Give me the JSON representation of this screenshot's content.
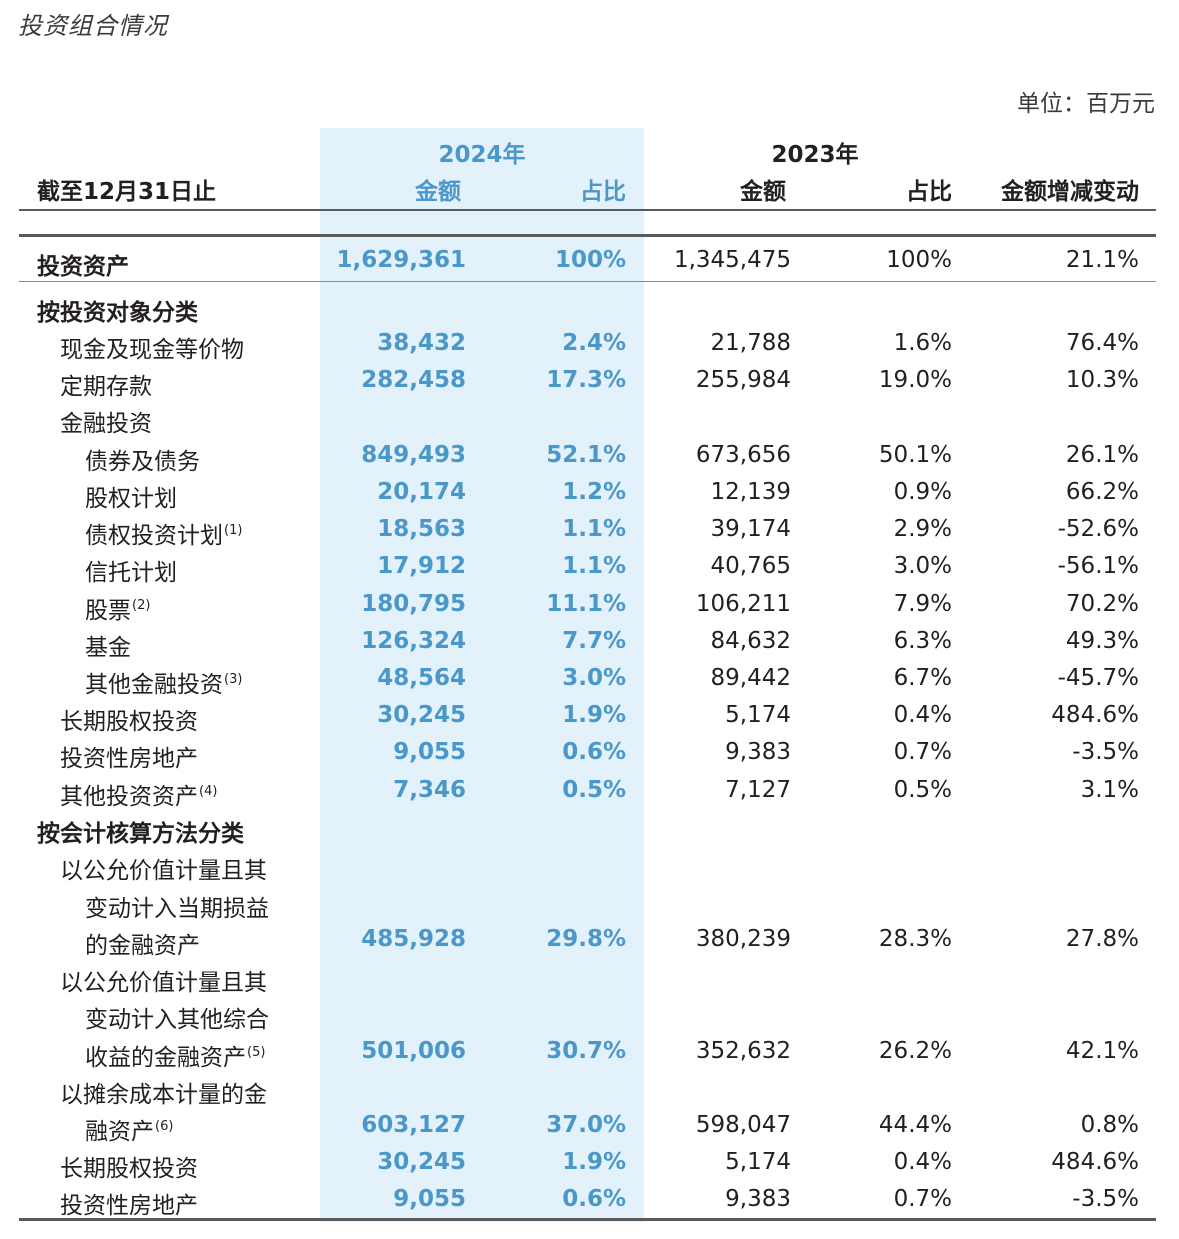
{
  "title": "投资组合情况",
  "unit": "单位：百万元",
  "header": {
    "col_label": "截至12月31日止",
    "year_2024": "2024年",
    "year_2023": "2023年",
    "amount": "金额",
    "share": "占比",
    "change": "金额增减变动"
  },
  "rows": [
    {
      "label": "投资资产",
      "note": "",
      "v24": "1,629,361",
      "p24": "100%",
      "v23": "1,345,475",
      "p23": "100%",
      "chg": "21.1%"
    },
    {
      "label": "按投资对象分类",
      "note": "",
      "v24": "",
      "p24": "",
      "v23": "",
      "p23": "",
      "chg": ""
    },
    {
      "label": "现金及现金等价物",
      "note": "",
      "v24": "38,432",
      "p24": "2.4%",
      "v23": "21,788",
      "p23": "1.6%",
      "chg": "76.4%"
    },
    {
      "label": "定期存款",
      "note": "",
      "v24": "282,458",
      "p24": "17.3%",
      "v23": "255,984",
      "p23": "19.0%",
      "chg": "10.3%"
    },
    {
      "label": "金融投资",
      "note": "",
      "v24": "",
      "p24": "",
      "v23": "",
      "p23": "",
      "chg": ""
    },
    {
      "label": "债券及债务",
      "note": "",
      "v24": "849,493",
      "p24": "52.1%",
      "v23": "673,656",
      "p23": "50.1%",
      "chg": "26.1%"
    },
    {
      "label": "股权计划",
      "note": "",
      "v24": "20,174",
      "p24": "1.2%",
      "v23": "12,139",
      "p23": "0.9%",
      "chg": "66.2%"
    },
    {
      "label": "债权投资计划",
      "note": "(1)",
      "v24": "18,563",
      "p24": "1.1%",
      "v23": "39,174",
      "p23": "2.9%",
      "chg": "-52.6%"
    },
    {
      "label": "信托计划",
      "note": "",
      "v24": "17,912",
      "p24": "1.1%",
      "v23": "40,765",
      "p23": "3.0%",
      "chg": "-56.1%"
    },
    {
      "label": "股票",
      "note": "(2)",
      "v24": "180,795",
      "p24": "11.1%",
      "v23": "106,211",
      "p23": "7.9%",
      "chg": "70.2%"
    },
    {
      "label": "基金",
      "note": "",
      "v24": "126,324",
      "p24": "7.7%",
      "v23": "84,632",
      "p23": "6.3%",
      "chg": "49.3%"
    },
    {
      "label": "其他金融投资",
      "note": "(3)",
      "v24": "48,564",
      "p24": "3.0%",
      "v23": "89,442",
      "p23": "6.7%",
      "chg": "-45.7%"
    },
    {
      "label": "长期股权投资",
      "note": "",
      "v24": "30,245",
      "p24": "1.9%",
      "v23": "5,174",
      "p23": "0.4%",
      "chg": "484.6%"
    },
    {
      "label": "投资性房地产",
      "note": "",
      "v24": "9,055",
      "p24": "0.6%",
      "v23": "9,383",
      "p23": "0.7%",
      "chg": "-3.5%"
    },
    {
      "label": "其他投资资产",
      "note": "(4)",
      "v24": "7,346",
      "p24": "0.5%",
      "v23": "7,127",
      "p23": "0.5%",
      "chg": "3.1%"
    },
    {
      "label": "按会计核算方法分类",
      "note": "",
      "v24": "",
      "p24": "",
      "v23": "",
      "p23": "",
      "chg": ""
    },
    {
      "label": "以公允价值计量且其",
      "note": "",
      "v24": "",
      "p24": "",
      "v23": "",
      "p23": "",
      "chg": ""
    },
    {
      "label": "变动计入当期损益",
      "note": "",
      "v24": "",
      "p24": "",
      "v23": "",
      "p23": "",
      "chg": ""
    },
    {
      "label": "的金融资产",
      "note": "",
      "v24": "485,928",
      "p24": "29.8%",
      "v23": "380,239",
      "p23": "28.3%",
      "chg": "27.8%"
    },
    {
      "label": "以公允价值计量且其",
      "note": "",
      "v24": "",
      "p24": "",
      "v23": "",
      "p23": "",
      "chg": ""
    },
    {
      "label": "变动计入其他综合",
      "note": "",
      "v24": "",
      "p24": "",
      "v23": "",
      "p23": "",
      "chg": ""
    },
    {
      "label": "收益的金融资产",
      "note": "(5)",
      "v24": "501,006",
      "p24": "30.7%",
      "v23": "352,632",
      "p23": "26.2%",
      "chg": "42.1%"
    },
    {
      "label": "以摊余成本计量的金",
      "note": "",
      "v24": "",
      "p24": "",
      "v23": "",
      "p23": "",
      "chg": ""
    },
    {
      "label": "融资产",
      "note": "(6)",
      "v24": "603,127",
      "p24": "37.0%",
      "v23": "598,047",
      "p23": "44.4%",
      "chg": "0.8%"
    },
    {
      "label": "长期股权投资",
      "note": "",
      "v24": "30,245",
      "p24": "1.9%",
      "v23": "5,174",
      "p23": "0.4%",
      "chg": "484.6%"
    },
    {
      "label": "投资性房地产",
      "note": "",
      "v24": "9,055",
      "p24": "0.6%",
      "v23": "9,383",
      "p23": "0.7%",
      "chg": "-3.5%"
    }
  ]
}
